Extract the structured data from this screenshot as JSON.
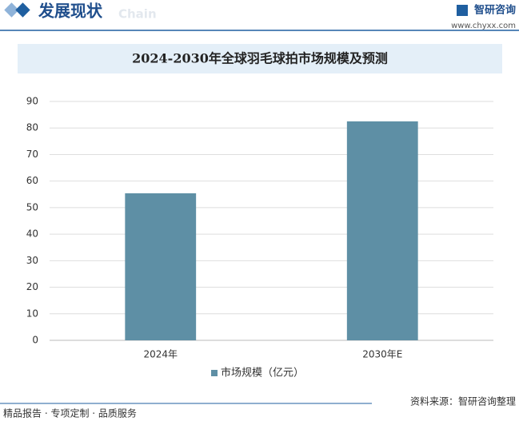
{
  "header": {
    "section": "发展现状",
    "watermark": "Chain",
    "brand": "智研咨询",
    "website": "www.chyxx.com"
  },
  "chart_data": {
    "type": "bar",
    "title": "2024-2030年全球羽毛球拍市场规模及预测",
    "categories": [
      "2024年",
      "2030年E"
    ],
    "series": [
      {
        "name": "市场规模（亿元）",
        "color": "#5e8fa5",
        "values": [
          55.4,
          82.5
        ]
      }
    ],
    "ylim": [
      0,
      90
    ],
    "yticks": [
      0,
      10,
      20,
      30,
      40,
      50,
      60,
      70,
      80,
      90
    ],
    "grid": true,
    "legend": "bottom"
  },
  "footer": {
    "slogan": "精品报告 · 专项定制 · 品质服务",
    "source": "资料来源：智研咨询整理"
  }
}
